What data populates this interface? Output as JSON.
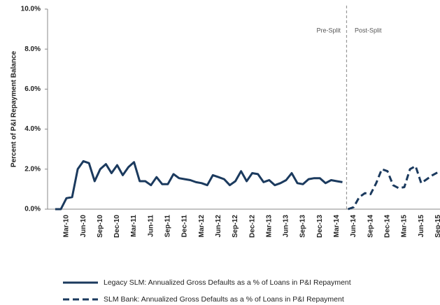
{
  "chart_data": {
    "type": "line",
    "y_label": "Percent of P&I Repayment  Balance",
    "annotations": [
      "Pre-Split",
      "Post-Split"
    ],
    "categories": [
      null,
      null,
      "Mar-10",
      null,
      null,
      "Jun-10",
      null,
      null,
      "Sep-10",
      null,
      null,
      "Dec-10",
      null,
      null,
      "Mar-11",
      null,
      null,
      "Jun-11",
      null,
      null,
      "Sep-11",
      null,
      null,
      "Dec-11",
      null,
      null,
      "Mar-12",
      null,
      null,
      "Jun-12",
      null,
      null,
      "Sep-12",
      null,
      null,
      "Dec-12",
      null,
      null,
      "Mar-13",
      null,
      null,
      "Jun-13",
      null,
      null,
      "Sep-13",
      null,
      null,
      "Dec-13",
      null,
      null,
      "Mar-14",
      null,
      null,
      "Jun-14",
      null,
      null,
      "Sep-14",
      null,
      null,
      "Dec-14",
      null,
      null,
      "Mar-15",
      null,
      null,
      "Jun-15",
      null,
      null,
      "Sep-15"
    ],
    "series": [
      {
        "name": "Legacy SLM: Annualized Gross Defaults as a % of Loans in P&I Repayment",
        "color": "#1b3a5e",
        "dash": false,
        "values": [
          0,
          0,
          0.55,
          0.6,
          2.0,
          2.4,
          2.3,
          1.4,
          2.0,
          2.25,
          1.8,
          2.2,
          1.7,
          2.1,
          2.35,
          1.4,
          1.4,
          1.2,
          1.6,
          1.25,
          1.25,
          1.75,
          1.55,
          1.5,
          1.45,
          1.35,
          1.3,
          1.2,
          1.7,
          1.6,
          1.5,
          1.2,
          1.4,
          1.9,
          1.4,
          1.8,
          1.75,
          1.35,
          1.45,
          1.2,
          1.3,
          1.45,
          1.8,
          1.3,
          1.25,
          1.5,
          1.55,
          1.55,
          1.3,
          1.45,
          1.4,
          1.35,
          null,
          null,
          null,
          null,
          null,
          null,
          null,
          null,
          null,
          null,
          null,
          null,
          null,
          null,
          null,
          null,
          null
        ]
      },
      {
        "name": "SLM Bank: Annualized Gross Defaults as a % of Loans in P&I Repayment",
        "color": "#1b3a5e",
        "dash": true,
        "values": [
          null,
          null,
          null,
          null,
          null,
          null,
          null,
          null,
          null,
          null,
          null,
          null,
          null,
          null,
          null,
          null,
          null,
          null,
          null,
          null,
          null,
          null,
          null,
          null,
          null,
          null,
          null,
          null,
          null,
          null,
          null,
          null,
          null,
          null,
          null,
          null,
          null,
          null,
          null,
          null,
          null,
          null,
          null,
          null,
          null,
          null,
          null,
          null,
          null,
          null,
          null,
          null,
          0,
          0.1,
          0.6,
          0.8,
          0.75,
          1.3,
          2.0,
          1.9,
          1.2,
          1.05,
          1.1,
          2.0,
          2.15,
          1.3,
          1.5,
          1.7,
          1.85
        ]
      }
    ],
    "ylim": [
      0,
      10
    ],
    "yticks": [
      {
        "value": 0,
        "label": "0.0%"
      },
      {
        "value": 2,
        "label": "2.0%"
      },
      {
        "value": 4,
        "label": "4.0%"
      },
      {
        "value": 6,
        "label": "6.0%"
      },
      {
        "value": 8,
        "label": "8.0%"
      },
      {
        "value": 10,
        "label": "10.0%"
      }
    ],
    "grid": false
  }
}
